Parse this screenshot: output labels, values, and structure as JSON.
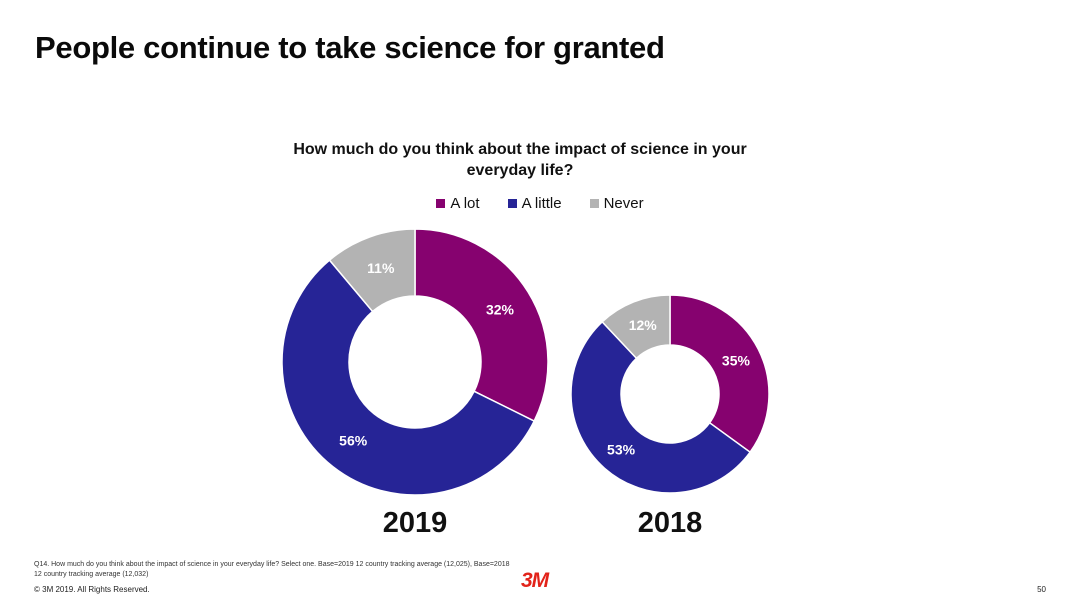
{
  "title": "People continue to take science for granted",
  "colors": {
    "a_lot": "#86026f",
    "a_little": "#262496",
    "never": "#b3b3b3",
    "logo": "#e2231a"
  },
  "chart_data": {
    "type": "pie",
    "subtype": "donut",
    "title": "How much do you think about the impact of science in your everyday life?",
    "legend": [
      "A lot",
      "A little",
      "Never"
    ],
    "legend_position": "top",
    "charts": [
      {
        "year": "2019",
        "slices": [
          {
            "name": "A lot",
            "value": 32,
            "label": "32%"
          },
          {
            "name": "A little",
            "value": 56,
            "label": "56%"
          },
          {
            "name": "Never",
            "value": 11,
            "label": "11%"
          }
        ]
      },
      {
        "year": "2018",
        "slices": [
          {
            "name": "A lot",
            "value": 35,
            "label": "35%"
          },
          {
            "name": "A little",
            "value": 53,
            "label": "53%"
          },
          {
            "name": "Never",
            "value": 12,
            "label": "12%"
          }
        ]
      }
    ]
  },
  "footnote": "Q14. How much do you think about the impact of science in your everyday life? Select one. Base=2019 12 country tracking average (12,025), Base=2018 12 country tracking average (12,032)",
  "copyright": "© 3M 2019.   All Rights Reserved.",
  "logo_text": "3M",
  "page_number": "50"
}
